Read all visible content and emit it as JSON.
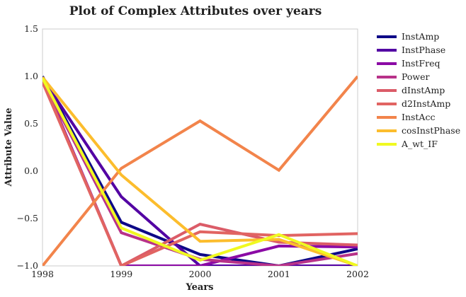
{
  "chart_data": {
    "type": "line",
    "title": "Plot of Complex Attributes over years",
    "xlabel": "Years",
    "ylabel": "Attribute Value",
    "x": [
      1998,
      1999,
      2000,
      2001,
      2002
    ],
    "xlim": [
      1998,
      2002
    ],
    "ylim": [
      -1.0,
      1.5
    ],
    "x_ticks": [
      "1998",
      "1999",
      "2000",
      "2001",
      "2002"
    ],
    "y_ticks": [
      "1.5",
      "1.0",
      "0.5",
      "0.0",
      "−0.5",
      "−1.0"
    ],
    "y_tick_values": [
      1.5,
      1.0,
      0.5,
      0.0,
      -0.5,
      -1.0
    ],
    "grid": false,
    "legend_position": "outside-right",
    "series": [
      {
        "name": "InstAmp",
        "color": "#0d0887",
        "values": [
          1.0,
          -0.54,
          -0.88,
          -1.0,
          -0.82
        ]
      },
      {
        "name": "InstPhase",
        "color": "#5302a3",
        "values": [
          0.98,
          -0.27,
          -1.0,
          -1.0,
          -1.0
        ]
      },
      {
        "name": "InstFreq",
        "color": "#8b0aa5",
        "values": [
          0.97,
          -1.0,
          -1.0,
          -0.79,
          -0.8
        ]
      },
      {
        "name": "Power",
        "color": "#b83289",
        "values": [
          0.96,
          -0.65,
          -0.93,
          -1.0,
          -0.87
        ]
      },
      {
        "name": "dInstAmp",
        "color": "#db5c68",
        "values": [
          0.95,
          -1.0,
          -0.56,
          -0.75,
          -0.78
        ]
      },
      {
        "name": "d2InstAmp",
        "color": "#e16462",
        "values": [
          0.94,
          -1.0,
          -0.64,
          -0.68,
          -0.66
        ]
      },
      {
        "name": "InstAcc",
        "color": "#f2844b",
        "values": [
          -1.0,
          0.03,
          0.53,
          0.01,
          1.0
        ]
      },
      {
        "name": "cosInstPhase",
        "color": "#fcbd2d",
        "values": [
          0.99,
          -0.04,
          -0.74,
          -0.72,
          -1.0
        ]
      },
      {
        "name": "A_wt_IF",
        "color": "#f0f921",
        "values": [
          0.98,
          -0.6,
          -0.94,
          -0.67,
          -1.0
        ]
      }
    ]
  }
}
